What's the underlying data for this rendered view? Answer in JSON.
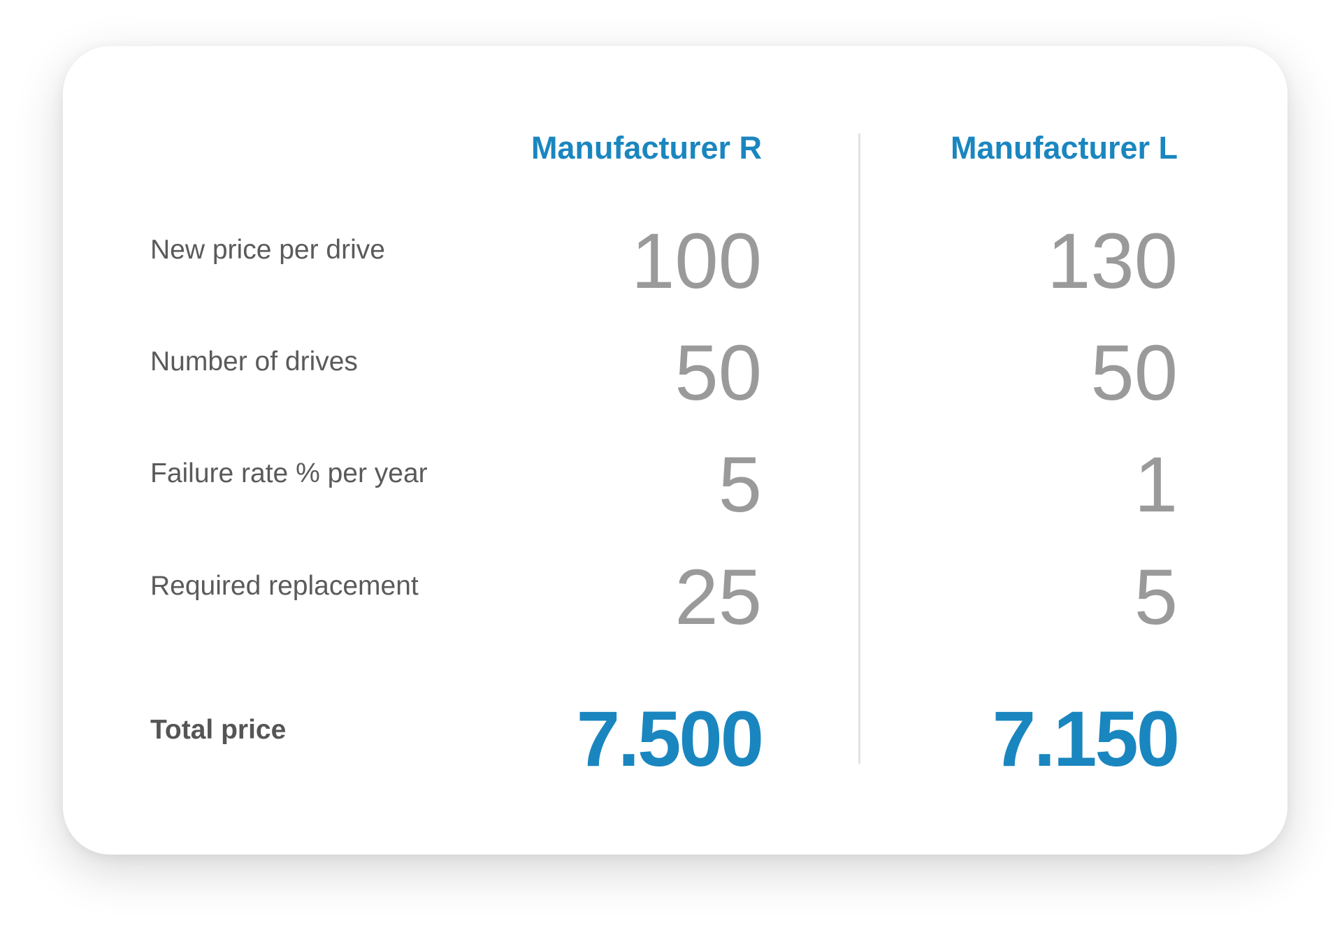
{
  "columns": {
    "r_label": "Manufacturer R",
    "l_label": "Manufacturer L"
  },
  "rows": [
    {
      "label": "New price per drive",
      "r": "100",
      "l": "130"
    },
    {
      "label": "Number of drives",
      "r": "50",
      "l": "50"
    },
    {
      "label": "Failure rate % per year",
      "r": "5",
      "l": "1"
    },
    {
      "label": "Required replacement",
      "r": "25",
      "l": "5"
    }
  ],
  "total": {
    "label": "Total price",
    "r": "7.500",
    "l": "7.150"
  },
  "colors": {
    "accent": "#1a86bf",
    "value": "#9a9a9a",
    "label": "#5a5a5a"
  }
}
